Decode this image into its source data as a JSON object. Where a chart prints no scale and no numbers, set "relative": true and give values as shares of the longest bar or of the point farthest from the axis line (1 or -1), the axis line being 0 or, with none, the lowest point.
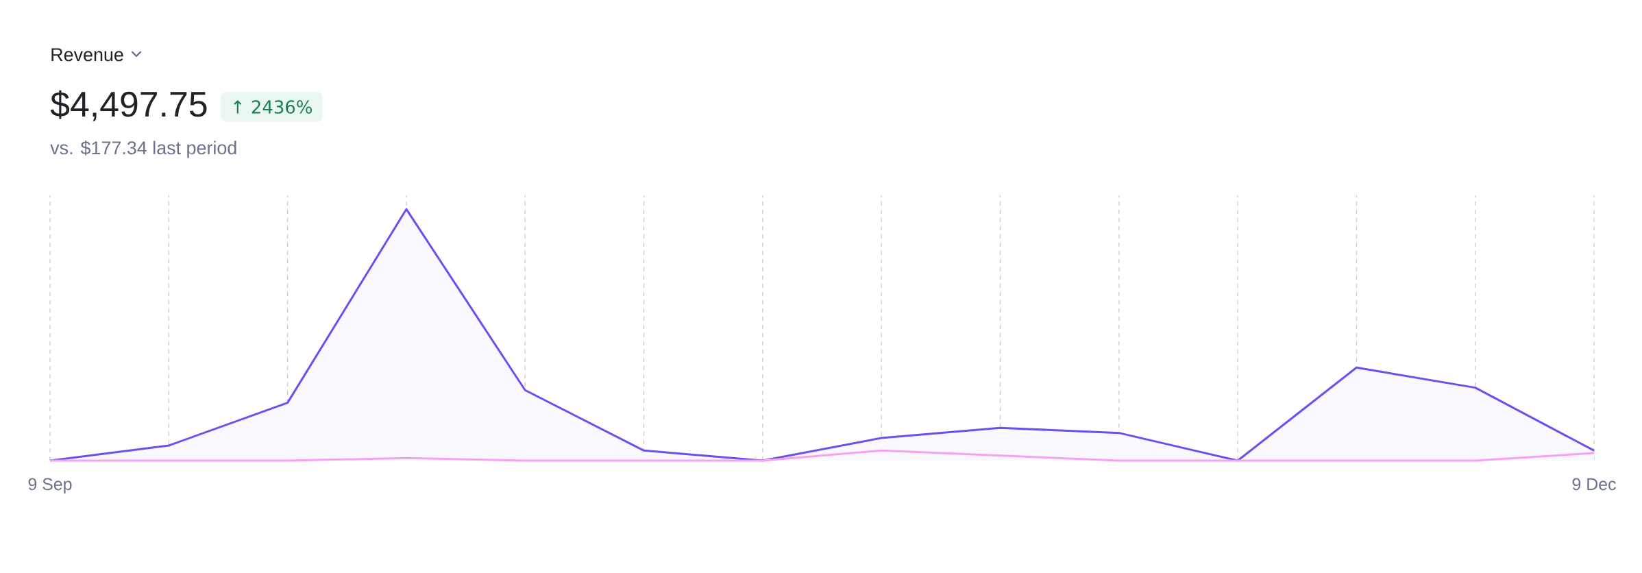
{
  "chart_data": {
    "type": "area",
    "title": "Revenue",
    "subtitle": "$4,497.75",
    "annotations": [
      "↑ 2436%",
      "vs. $177.34 last period"
    ],
    "relative": true,
    "grid": "x",
    "marker": "none",
    "categories": [
      "9 Sep",
      null,
      null,
      null,
      null,
      null,
      null,
      null,
      null,
      null,
      null,
      null,
      null,
      "9 Dec"
    ],
    "series": [
      {
        "color": "#6b4ff0",
        "values": [
          0,
          0.06,
          0.23,
          1,
          0.28,
          0.04,
          0,
          0.09,
          0.13,
          0.11,
          0,
          0.37,
          0.29,
          0.04
        ]
      },
      {
        "type": "line",
        "color": "#f7a1f0",
        "values": [
          0,
          0,
          0,
          0.01,
          0,
          0,
          0,
          0.04,
          0.02,
          0,
          0,
          0,
          0,
          0.03
        ]
      }
    ]
  }
}
